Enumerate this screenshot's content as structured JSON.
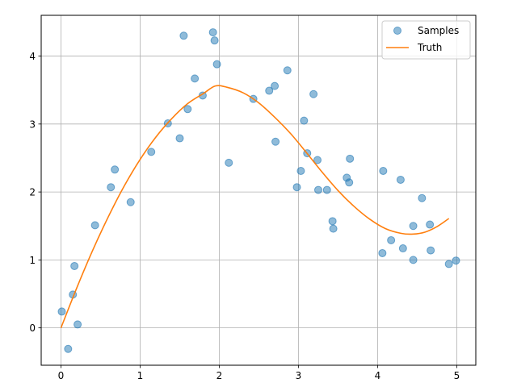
{
  "chart_data": {
    "type": "scatter",
    "title": "",
    "xlabel": "",
    "ylabel": "",
    "xlim": [
      -0.25,
      5.24
    ],
    "ylim": [
      -0.55,
      4.6
    ],
    "grid": true,
    "legend_placement": "top-right",
    "x_ticks": [
      0,
      1,
      2,
      3,
      4,
      5
    ],
    "y_ticks": [
      0,
      1,
      2,
      3,
      4
    ],
    "x_tick_labels": [
      "0",
      "1",
      "2",
      "3",
      "4",
      "5"
    ],
    "y_tick_labels": [
      "0",
      "1",
      "2",
      "3",
      "4"
    ],
    "series": [
      {
        "name": "Samples",
        "kind": "scatter",
        "color": "#1f77b4",
        "points": [
          [
            0.01,
            0.24
          ],
          [
            0.09,
            -0.31
          ],
          [
            0.15,
            0.49
          ],
          [
            0.17,
            0.91
          ],
          [
            0.21,
            0.05
          ],
          [
            0.43,
            1.51
          ],
          [
            0.63,
            2.07
          ],
          [
            0.68,
            2.33
          ],
          [
            0.88,
            1.85
          ],
          [
            1.14,
            2.59
          ],
          [
            1.35,
            3.01
          ],
          [
            1.5,
            2.79
          ],
          [
            1.55,
            4.3
          ],
          [
            1.6,
            3.22
          ],
          [
            1.69,
            3.67
          ],
          [
            1.79,
            3.42
          ],
          [
            1.92,
            4.35
          ],
          [
            1.94,
            4.23
          ],
          [
            1.97,
            3.88
          ],
          [
            2.12,
            2.43
          ],
          [
            2.43,
            3.37
          ],
          [
            2.63,
            3.49
          ],
          [
            2.7,
            3.56
          ],
          [
            2.71,
            2.74
          ],
          [
            2.86,
            3.79
          ],
          [
            2.98,
            2.07
          ],
          [
            3.03,
            2.31
          ],
          [
            3.07,
            3.05
          ],
          [
            3.11,
            2.57
          ],
          [
            3.19,
            3.44
          ],
          [
            3.24,
            2.47
          ],
          [
            3.25,
            2.03
          ],
          [
            3.36,
            2.03
          ],
          [
            3.43,
            1.57
          ],
          [
            3.44,
            1.46
          ],
          [
            3.61,
            2.21
          ],
          [
            3.64,
            2.14
          ],
          [
            3.65,
            2.49
          ],
          [
            4.06,
            1.1
          ],
          [
            4.07,
            2.31
          ],
          [
            4.17,
            1.29
          ],
          [
            4.29,
            2.18
          ],
          [
            4.32,
            1.17
          ],
          [
            4.45,
            1.0
          ],
          [
            4.45,
            1.5
          ],
          [
            4.56,
            1.91
          ],
          [
            4.66,
            1.52
          ],
          [
            4.67,
            1.14
          ],
          [
            4.9,
            0.94
          ],
          [
            4.99,
            0.99
          ]
        ]
      },
      {
        "name": "Truth",
        "kind": "line",
        "color": "#ff7f0e",
        "points": [
          [
            0.0,
            0.0
          ],
          [
            0.2,
            0.59
          ],
          [
            0.4,
            1.14
          ],
          [
            0.6,
            1.64
          ],
          [
            0.8,
            2.09
          ],
          [
            1.0,
            2.48
          ],
          [
            1.2,
            2.81
          ],
          [
            1.4,
            3.08
          ],
          [
            1.6,
            3.3
          ],
          [
            1.8,
            3.45
          ],
          [
            1.95,
            3.56
          ],
          [
            2.1,
            3.54
          ],
          [
            2.3,
            3.46
          ],
          [
            2.5,
            3.31
          ],
          [
            2.7,
            3.1
          ],
          [
            2.9,
            2.86
          ],
          [
            3.1,
            2.58
          ],
          [
            3.3,
            2.29
          ],
          [
            3.5,
            2.02
          ],
          [
            3.7,
            1.79
          ],
          [
            3.9,
            1.6
          ],
          [
            4.1,
            1.46
          ],
          [
            4.3,
            1.39
          ],
          [
            4.45,
            1.38
          ],
          [
            4.6,
            1.41
          ],
          [
            4.75,
            1.49
          ],
          [
            4.9,
            1.61
          ]
        ]
      }
    ]
  }
}
